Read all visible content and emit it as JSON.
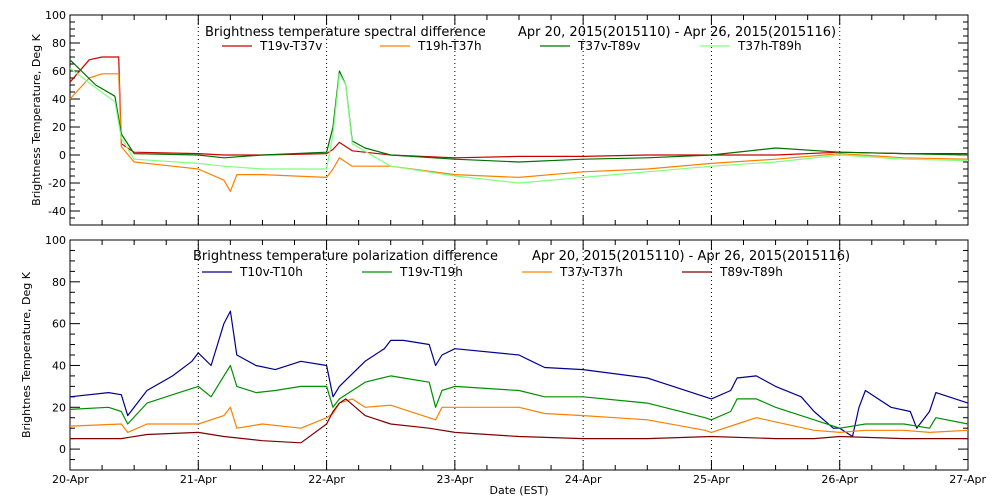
{
  "chart_data": [
    {
      "type": "line",
      "title": "Brightness temperature spectral difference",
      "date_range": "Apr 20, 2015(2015110) - Apr 26, 2015(2015116)",
      "ylabel": "Brightness Temperature, Deg K",
      "xlabel": "",
      "ylim": [
        -50,
        100
      ],
      "yticks": [
        -40,
        -20,
        0,
        20,
        40,
        60,
        80,
        100
      ],
      "xlim": [
        0,
        7
      ],
      "grid": "vertical dotted at day boundaries",
      "legend": "top, single row",
      "series": [
        {
          "name": "T19v-T37v",
          "color": "#cc0000",
          "x": [
            0,
            0.15,
            0.25,
            0.3,
            0.38,
            0.4,
            0.5,
            1,
            1.2,
            1.5,
            2,
            2.05,
            2.1,
            2.2,
            2.5,
            3,
            3.5,
            4,
            4.5,
            5,
            5.5,
            6,
            6.5,
            7
          ],
          "y": [
            52,
            68,
            70,
            70,
            70,
            8,
            2,
            1,
            0,
            0,
            1,
            4,
            9,
            3,
            0,
            -2,
            -1,
            -1,
            0,
            0,
            0,
            2,
            1,
            1
          ]
        },
        {
          "name": "T19h-T37h",
          "color": "#ff8000",
          "x": [
            0,
            0.15,
            0.25,
            0.3,
            0.38,
            0.4,
            0.5,
            0.8,
            1,
            1.2,
            1.25,
            1.3,
            1.5,
            2,
            2.05,
            2.1,
            2.2,
            2.5,
            3,
            3.5,
            4,
            4.5,
            5,
            5.5,
            6,
            6.5,
            7
          ],
          "y": [
            40,
            55,
            58,
            58,
            58,
            6,
            -5,
            -8,
            -10,
            -18,
            -26,
            -14,
            -14,
            -16,
            -10,
            -2,
            -8,
            -8,
            -14,
            -16,
            -12,
            -10,
            -6,
            -3,
            1,
            -2,
            -3
          ]
        },
        {
          "name": "T37v-T89v",
          "color": "#007000",
          "x": [
            0,
            0.2,
            0.35,
            0.4,
            0.5,
            1,
            1.2,
            1.5,
            2,
            2.05,
            2.1,
            2.15,
            2.2,
            2.3,
            2.5,
            3,
            3.5,
            4,
            4.5,
            5,
            5.5,
            6,
            6.5,
            7
          ],
          "y": [
            68,
            50,
            42,
            15,
            1,
            0,
            -2,
            0,
            2,
            20,
            60,
            50,
            10,
            5,
            0,
            -3,
            -5,
            -3,
            -2,
            0,
            5,
            2,
            1,
            0
          ]
        },
        {
          "name": "T37h-T89h",
          "color": "#80ff80",
          "x": [
            0,
            0.2,
            0.35,
            0.4,
            0.5,
            1,
            1.2,
            1.5,
            2,
            2.05,
            2.1,
            2.15,
            2.2,
            2.5,
            3,
            3.5,
            4,
            4.5,
            5,
            5.5,
            6,
            6.5,
            7
          ],
          "y": [
            62,
            48,
            38,
            12,
            -3,
            -6,
            -8,
            -10,
            -10,
            15,
            58,
            50,
            8,
            -8,
            -15,
            -20,
            -16,
            -12,
            -8,
            -5,
            0,
            -3,
            -4
          ]
        }
      ]
    },
    {
      "type": "line",
      "title": "Brightness temperature polarization difference",
      "date_range": "Apr 20, 2015(2015110) - Apr 26, 2015(2015116)",
      "ylabel": "Brightnes Temperature, Deg K",
      "xlabel": "Date (EST)",
      "ylim": [
        -10,
        100
      ],
      "yticks": [
        0,
        20,
        40,
        60,
        80,
        100
      ],
      "xlim": [
        0,
        7
      ],
      "grid": "vertical dotted at day boundaries",
      "legend": "top, single row",
      "categories": [
        "20-Apr",
        "21-Apr",
        "22-Apr",
        "23-Apr",
        "24-Apr",
        "25-Apr",
        "26-Apr",
        "27-Apr"
      ],
      "series": [
        {
          "name": "T10v-T10h",
          "color": "#000090",
          "x": [
            0,
            0.3,
            0.4,
            0.45,
            0.6,
            0.8,
            0.95,
            1,
            1.1,
            1.2,
            1.25,
            1.3,
            1.45,
            1.6,
            1.8,
            2,
            2.05,
            2.1,
            2.3,
            2.45,
            2.5,
            2.6,
            2.8,
            2.85,
            2.9,
            3,
            3.5,
            3.6,
            3.7,
            4,
            4.5,
            4.95,
            5,
            5.15,
            5.2,
            5.35,
            5.5,
            5.7,
            5.8,
            5.95,
            6,
            6.1,
            6.15,
            6.2,
            6.4,
            6.55,
            6.6,
            6.7,
            6.75,
            7
          ],
          "y": [
            25,
            27,
            26,
            16,
            28,
            35,
            42,
            46,
            40,
            60,
            66,
            45,
            40,
            38,
            42,
            40,
            25,
            30,
            42,
            48,
            52,
            52,
            50,
            40,
            45,
            48,
            45,
            42,
            39,
            38,
            34,
            25,
            24,
            28,
            34,
            35,
            30,
            25,
            18,
            10,
            10,
            6,
            20,
            28,
            20,
            18,
            10,
            18,
            27,
            22
          ]
        },
        {
          "name": "T19v-T19h",
          "color": "#009000",
          "x": [
            0,
            0.3,
            0.4,
            0.45,
            0.6,
            0.8,
            1,
            1.1,
            1.2,
            1.25,
            1.3,
            1.45,
            1.6,
            1.8,
            2,
            2.05,
            2.1,
            2.3,
            2.5,
            2.8,
            2.85,
            2.9,
            3,
            3.5,
            3.7,
            4,
            4.5,
            4.95,
            5,
            5.15,
            5.2,
            5.35,
            5.5,
            5.8,
            6,
            6.2,
            6.5,
            6.7,
            6.75,
            7
          ],
          "y": [
            19,
            20,
            18,
            12,
            22,
            26,
            30,
            25,
            35,
            40,
            30,
            27,
            28,
            30,
            30,
            20,
            24,
            32,
            35,
            32,
            20,
            28,
            30,
            28,
            25,
            25,
            22,
            15,
            14,
            18,
            24,
            24,
            20,
            14,
            10,
            12,
            12,
            10,
            15,
            12
          ]
        },
        {
          "name": "T37v-T37h",
          "color": "#ff8000",
          "x": [
            0,
            0.4,
            0.45,
            0.6,
            1,
            1.2,
            1.25,
            1.3,
            1.5,
            1.8,
            2,
            2.05,
            2.1,
            2.2,
            2.3,
            2.5,
            2.85,
            2.9,
            3,
            3.5,
            3.7,
            4,
            4.5,
            4.95,
            5,
            5.2,
            5.35,
            5.5,
            5.8,
            6,
            6.2,
            6.5,
            6.7,
            7
          ],
          "y": [
            11,
            12,
            8,
            12,
            12,
            16,
            20,
            10,
            12,
            10,
            15,
            17,
            22,
            24,
            20,
            21,
            14,
            20,
            20,
            20,
            17,
            16,
            14,
            9,
            8,
            12,
            15,
            13,
            9,
            8,
            9,
            9,
            8,
            9
          ]
        },
        {
          "name": "T89v-T89h",
          "color": "#800000",
          "x": [
            0,
            0.4,
            0.6,
            1,
            1.2,
            1.5,
            1.8,
            2,
            2.05,
            2.1,
            2.15,
            2.3,
            2.5,
            2.8,
            3,
            3.5,
            4,
            4.5,
            5,
            5.5,
            5.8,
            6,
            6.5,
            6.7,
            7
          ],
          "y": [
            5,
            5,
            7,
            8,
            6,
            4,
            3,
            12,
            18,
            22,
            24,
            16,
            12,
            10,
            8,
            6,
            5,
            5,
            6,
            5,
            5,
            6,
            5,
            5,
            5
          ]
        }
      ]
    }
  ]
}
